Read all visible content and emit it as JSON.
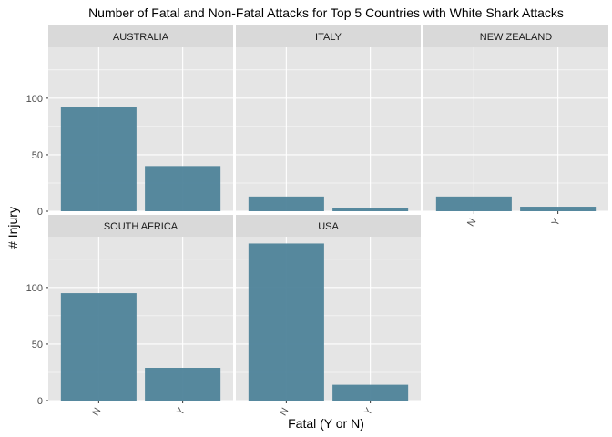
{
  "chart_data": {
    "type": "bar",
    "title": "Number of Fatal and Non-Fatal Attacks for Top 5 Countries with White Shark Attacks",
    "xlabel": "Fatal (Y or N)",
    "ylabel": "# Injury",
    "categories": [
      "N",
      "Y"
    ],
    "ylim": [
      0,
      145
    ],
    "yticks": [
      0,
      50,
      100
    ],
    "grid": true,
    "legend": "none",
    "bar_color": "#4e8399",
    "panel_bg": "#e5e5e5",
    "strip_bg": "#d9d9d9",
    "grid_color": "#ffffff",
    "facets": [
      {
        "name": "AUSTRALIA",
        "values": [
          92,
          40
        ]
      },
      {
        "name": "ITALY",
        "values": [
          13,
          3
        ]
      },
      {
        "name": "NEW ZEALAND",
        "values": [
          13,
          4
        ]
      },
      {
        "name": "SOUTH AFRICA",
        "values": [
          95,
          29
        ]
      },
      {
        "name": "USA",
        "values": [
          139,
          14
        ]
      }
    ]
  }
}
